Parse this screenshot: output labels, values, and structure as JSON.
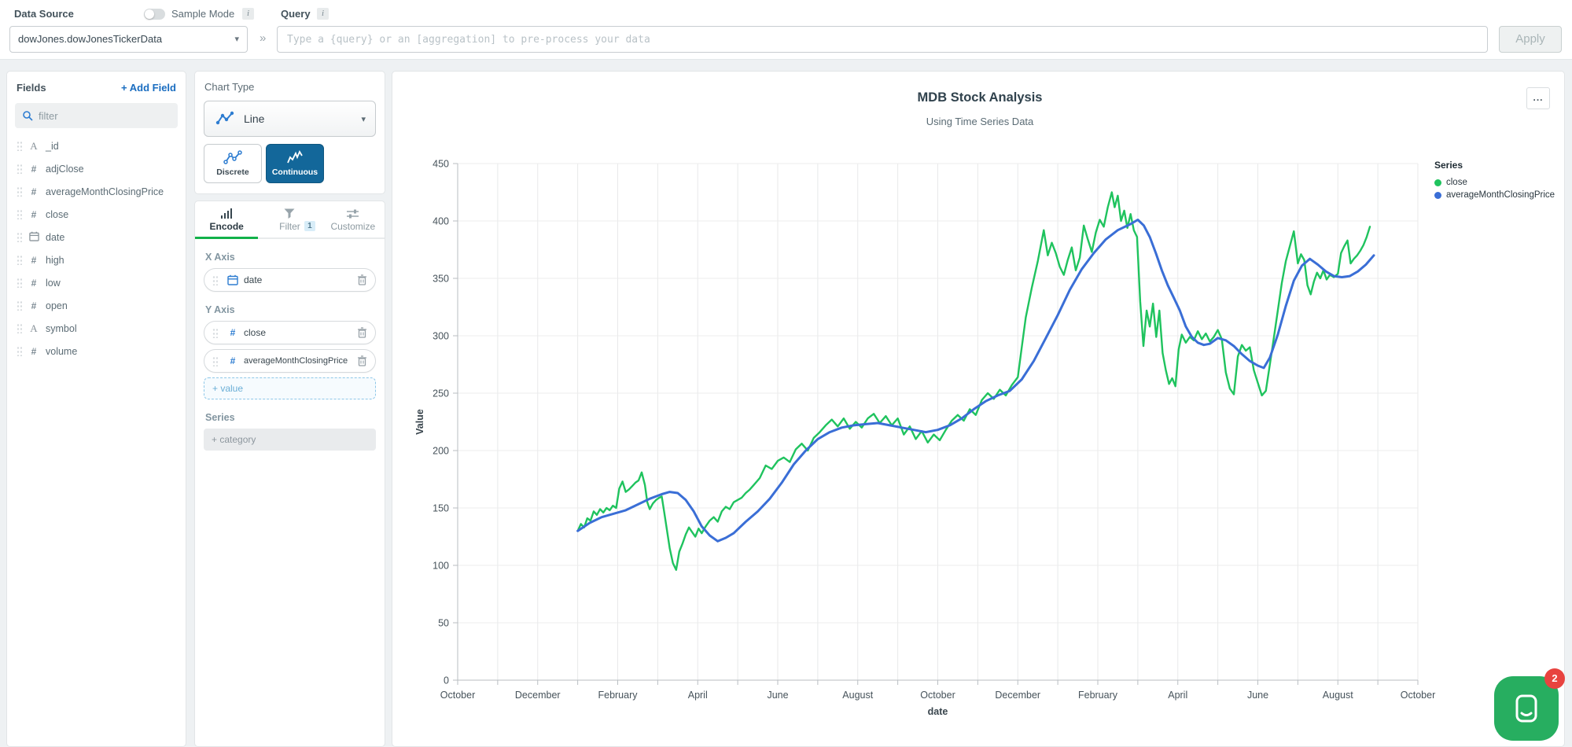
{
  "topbar": {
    "data_source_label": "Data Source",
    "sample_mode_label": "Sample Mode",
    "query_label": "Query",
    "info_glyph": "i",
    "data_source_value": "dowJones.dowJonesTickerData",
    "chevron": "»",
    "query_placeholder": "Type a {query} or an [aggregation] to pre-process your data",
    "apply_label": "Apply"
  },
  "fields_panel": {
    "title": "Fields",
    "add_field_label": "+ Add Field",
    "filter_placeholder": "filter",
    "fields": [
      {
        "name": "_id",
        "type": "string"
      },
      {
        "name": "adjClose",
        "type": "number"
      },
      {
        "name": "averageMonthClosingPrice",
        "type": "number"
      },
      {
        "name": "close",
        "type": "number"
      },
      {
        "name": "date",
        "type": "date"
      },
      {
        "name": "high",
        "type": "number"
      },
      {
        "name": "low",
        "type": "number"
      },
      {
        "name": "open",
        "type": "number"
      },
      {
        "name": "symbol",
        "type": "string"
      },
      {
        "name": "volume",
        "type": "number"
      }
    ]
  },
  "chart_type_panel": {
    "title": "Chart Type",
    "selected_type": "Line",
    "subtypes": [
      {
        "label": "Discrete",
        "selected": false
      },
      {
        "label": "Continuous",
        "selected": true
      }
    ]
  },
  "encode_panel": {
    "tabs": [
      {
        "label": "Encode",
        "active": true
      },
      {
        "label": "Filter",
        "badge": "1"
      },
      {
        "label": "Customize"
      }
    ],
    "x_axis": {
      "label": "X Axis",
      "field": "date"
    },
    "y_axis": {
      "label": "Y Axis",
      "fields": [
        "close",
        "averageMonthClosingPrice"
      ],
      "add_label": "+ value"
    },
    "series": {
      "label": "Series",
      "add_label": "+ category"
    }
  },
  "chart": {
    "title": "MDB Stock Analysis",
    "subtitle": "Using Time Series Data",
    "menu_label": "...",
    "legend": {
      "title": "Series",
      "items": [
        {
          "label": "close",
          "color": "#1fc35e"
        },
        {
          "label": "averageMonthClosingPrice",
          "color": "#3a6ed6"
        }
      ]
    }
  },
  "chart_data": {
    "type": "line",
    "title": "MDB Stock Analysis",
    "subtitle": "Using Time Series Data",
    "xlabel": "date",
    "ylabel": "Value",
    "ylim": [
      0,
      450
    ],
    "ytick_step": 50,
    "grid": true,
    "legend_position": "right",
    "x_is_months_from_first_tick": true,
    "months_span": 24,
    "x_tick_labels": [
      "October",
      "December",
      "February",
      "April",
      "June",
      "August",
      "October",
      "December",
      "February",
      "April",
      "June",
      "August",
      "October"
    ],
    "series": [
      {
        "name": "close",
        "color": "#1fc35e",
        "width": 2.4,
        "points": [
          [
            3.0,
            130
          ],
          [
            3.08,
            136
          ],
          [
            3.16,
            133
          ],
          [
            3.24,
            141
          ],
          [
            3.32,
            139
          ],
          [
            3.4,
            147
          ],
          [
            3.48,
            144
          ],
          [
            3.56,
            149
          ],
          [
            3.64,
            146
          ],
          [
            3.72,
            150
          ],
          [
            3.8,
            148
          ],
          [
            3.88,
            152
          ],
          [
            3.96,
            150
          ],
          [
            4.04,
            167
          ],
          [
            4.12,
            173
          ],
          [
            4.2,
            164
          ],
          [
            4.28,
            166
          ],
          [
            4.36,
            169
          ],
          [
            4.44,
            172
          ],
          [
            4.52,
            174
          ],
          [
            4.6,
            181
          ],
          [
            4.68,
            170
          ],
          [
            4.74,
            155
          ],
          [
            4.8,
            149
          ],
          [
            4.88,
            154
          ],
          [
            4.96,
            157
          ],
          [
            5.04,
            159
          ],
          [
            5.1,
            160
          ],
          [
            5.16,
            147
          ],
          [
            5.22,
            133
          ],
          [
            5.3,
            115
          ],
          [
            5.38,
            102
          ],
          [
            5.46,
            96
          ],
          [
            5.54,
            112
          ],
          [
            5.62,
            119
          ],
          [
            5.7,
            127
          ],
          [
            5.78,
            133
          ],
          [
            5.86,
            129
          ],
          [
            5.94,
            125
          ],
          [
            6.02,
            132
          ],
          [
            6.1,
            128
          ],
          [
            6.2,
            134
          ],
          [
            6.3,
            139
          ],
          [
            6.4,
            142
          ],
          [
            6.5,
            138
          ],
          [
            6.6,
            147
          ],
          [
            6.7,
            151
          ],
          [
            6.8,
            149
          ],
          [
            6.9,
            155
          ],
          [
            7.0,
            157
          ],
          [
            7.1,
            159
          ],
          [
            7.2,
            163
          ],
          [
            7.3,
            166
          ],
          [
            7.4,
            170
          ],
          [
            7.55,
            176
          ],
          [
            7.7,
            187
          ],
          [
            7.85,
            184
          ],
          [
            8.0,
            191
          ],
          [
            8.15,
            194
          ],
          [
            8.3,
            190
          ],
          [
            8.45,
            201
          ],
          [
            8.6,
            206
          ],
          [
            8.75,
            200
          ],
          [
            8.9,
            211
          ],
          [
            9.05,
            216
          ],
          [
            9.2,
            222
          ],
          [
            9.35,
            227
          ],
          [
            9.5,
            221
          ],
          [
            9.65,
            228
          ],
          [
            9.8,
            219
          ],
          [
            9.95,
            225
          ],
          [
            10.1,
            220
          ],
          [
            10.25,
            228
          ],
          [
            10.4,
            232
          ],
          [
            10.55,
            224
          ],
          [
            10.7,
            230
          ],
          [
            10.85,
            222
          ],
          [
            11.0,
            228
          ],
          [
            11.15,
            214
          ],
          [
            11.3,
            221
          ],
          [
            11.45,
            210
          ],
          [
            11.6,
            217
          ],
          [
            11.75,
            207
          ],
          [
            11.9,
            214
          ],
          [
            12.05,
            209
          ],
          [
            12.2,
            218
          ],
          [
            12.35,
            226
          ],
          [
            12.5,
            231
          ],
          [
            12.65,
            226
          ],
          [
            12.8,
            236
          ],
          [
            12.95,
            231
          ],
          [
            13.1,
            244
          ],
          [
            13.25,
            250
          ],
          [
            13.4,
            245
          ],
          [
            13.55,
            253
          ],
          [
            13.7,
            248
          ],
          [
            13.85,
            257
          ],
          [
            14.0,
            264
          ],
          [
            14.1,
            290
          ],
          [
            14.2,
            316
          ],
          [
            14.35,
            342
          ],
          [
            14.5,
            365
          ],
          [
            14.65,
            392
          ],
          [
            14.75,
            370
          ],
          [
            14.85,
            381
          ],
          [
            14.95,
            372
          ],
          [
            15.05,
            360
          ],
          [
            15.15,
            353
          ],
          [
            15.25,
            366
          ],
          [
            15.35,
            377
          ],
          [
            15.45,
            357
          ],
          [
            15.55,
            368
          ],
          [
            15.65,
            396
          ],
          [
            15.75,
            384
          ],
          [
            15.85,
            373
          ],
          [
            15.95,
            390
          ],
          [
            16.05,
            401
          ],
          [
            16.15,
            395
          ],
          [
            16.25,
            412
          ],
          [
            16.35,
            425
          ],
          [
            16.42,
            412
          ],
          [
            16.5,
            422
          ],
          [
            16.58,
            400
          ],
          [
            16.66,
            409
          ],
          [
            16.74,
            394
          ],
          [
            16.82,
            406
          ],
          [
            16.9,
            392
          ],
          [
            16.98,
            386
          ],
          [
            17.06,
            330
          ],
          [
            17.14,
            291
          ],
          [
            17.22,
            322
          ],
          [
            17.3,
            308
          ],
          [
            17.38,
            328
          ],
          [
            17.46,
            299
          ],
          [
            17.54,
            322
          ],
          [
            17.62,
            285
          ],
          [
            17.7,
            270
          ],
          [
            17.78,
            258
          ],
          [
            17.86,
            263
          ],
          [
            17.94,
            256
          ],
          [
            18.02,
            288
          ],
          [
            18.1,
            301
          ],
          [
            18.2,
            294
          ],
          [
            18.3,
            299
          ],
          [
            18.4,
            296
          ],
          [
            18.5,
            304
          ],
          [
            18.6,
            297
          ],
          [
            18.7,
            302
          ],
          [
            18.8,
            295
          ],
          [
            18.9,
            299
          ],
          [
            19.0,
            305
          ],
          [
            19.1,
            297
          ],
          [
            19.2,
            268
          ],
          [
            19.3,
            254
          ],
          [
            19.4,
            249
          ],
          [
            19.5,
            282
          ],
          [
            19.6,
            292
          ],
          [
            19.7,
            287
          ],
          [
            19.8,
            290
          ],
          [
            19.9,
            270
          ],
          [
            20.0,
            259
          ],
          [
            20.1,
            248
          ],
          [
            20.2,
            252
          ],
          [
            20.3,
            275
          ],
          [
            20.4,
            298
          ],
          [
            20.5,
            322
          ],
          [
            20.6,
            346
          ],
          [
            20.7,
            365
          ],
          [
            20.8,
            378
          ],
          [
            20.9,
            391
          ],
          [
            21.0,
            363
          ],
          [
            21.08,
            371
          ],
          [
            21.16,
            366
          ],
          [
            21.24,
            344
          ],
          [
            21.32,
            336
          ],
          [
            21.4,
            347
          ],
          [
            21.48,
            355
          ],
          [
            21.56,
            350
          ],
          [
            21.64,
            357
          ],
          [
            21.72,
            349
          ],
          [
            21.8,
            353
          ],
          [
            21.9,
            351
          ],
          [
            22.0,
            354
          ],
          [
            22.08,
            372
          ],
          [
            22.16,
            378
          ],
          [
            22.24,
            383
          ],
          [
            22.32,
            363
          ],
          [
            22.4,
            367
          ],
          [
            22.48,
            370
          ],
          [
            22.56,
            374
          ],
          [
            22.64,
            379
          ],
          [
            22.72,
            386
          ],
          [
            22.8,
            395
          ]
        ]
      },
      {
        "name": "averageMonthClosingPrice",
        "color": "#3a6ed6",
        "width": 3,
        "points": [
          [
            3.0,
            130
          ],
          [
            3.3,
            137
          ],
          [
            3.6,
            142
          ],
          [
            3.9,
            145
          ],
          [
            4.2,
            148
          ],
          [
            4.5,
            153
          ],
          [
            4.8,
            158
          ],
          [
            5.1,
            162
          ],
          [
            5.3,
            164
          ],
          [
            5.5,
            163
          ],
          [
            5.7,
            157
          ],
          [
            5.9,
            147
          ],
          [
            6.1,
            134
          ],
          [
            6.3,
            126
          ],
          [
            6.5,
            121
          ],
          [
            6.7,
            124
          ],
          [
            6.9,
            128
          ],
          [
            7.2,
            138
          ],
          [
            7.5,
            147
          ],
          [
            7.8,
            158
          ],
          [
            8.1,
            172
          ],
          [
            8.4,
            188
          ],
          [
            8.7,
            200
          ],
          [
            9.0,
            210
          ],
          [
            9.3,
            216
          ],
          [
            9.6,
            220
          ],
          [
            9.9,
            222
          ],
          [
            10.2,
            223
          ],
          [
            10.5,
            224
          ],
          [
            10.8,
            222
          ],
          [
            11.1,
            220
          ],
          [
            11.4,
            218
          ],
          [
            11.7,
            216
          ],
          [
            12.0,
            218
          ],
          [
            12.3,
            222
          ],
          [
            12.6,
            228
          ],
          [
            12.9,
            236
          ],
          [
            13.2,
            243
          ],
          [
            13.5,
            248
          ],
          [
            13.8,
            252
          ],
          [
            14.1,
            262
          ],
          [
            14.4,
            278
          ],
          [
            14.7,
            298
          ],
          [
            15.0,
            318
          ],
          [
            15.3,
            340
          ],
          [
            15.6,
            358
          ],
          [
            15.9,
            372
          ],
          [
            16.2,
            384
          ],
          [
            16.5,
            392
          ],
          [
            16.8,
            397
          ],
          [
            17.0,
            401
          ],
          [
            17.15,
            396
          ],
          [
            17.3,
            386
          ],
          [
            17.45,
            372
          ],
          [
            17.6,
            357
          ],
          [
            17.75,
            344
          ],
          [
            17.9,
            333
          ],
          [
            18.05,
            322
          ],
          [
            18.2,
            308
          ],
          [
            18.35,
            299
          ],
          [
            18.5,
            294
          ],
          [
            18.65,
            292
          ],
          [
            18.8,
            293
          ],
          [
            19.0,
            298
          ],
          [
            19.2,
            296
          ],
          [
            19.4,
            291
          ],
          [
            19.6,
            284
          ],
          [
            19.8,
            278
          ],
          [
            20.0,
            274
          ],
          [
            20.15,
            272
          ],
          [
            20.3,
            281
          ],
          [
            20.5,
            301
          ],
          [
            20.7,
            326
          ],
          [
            20.9,
            348
          ],
          [
            21.1,
            361
          ],
          [
            21.3,
            367
          ],
          [
            21.5,
            362
          ],
          [
            21.7,
            356
          ],
          [
            21.9,
            352
          ],
          [
            22.1,
            351
          ],
          [
            22.3,
            352
          ],
          [
            22.5,
            356
          ],
          [
            22.7,
            362
          ],
          [
            22.9,
            370
          ]
        ]
      }
    ]
  },
  "intercom": {
    "badge": "2"
  },
  "colors": {
    "accent_blue": "#1a6dc0",
    "icon_blue": "#2e7dd1",
    "tab_green": "#12b14a",
    "continuous_bg": "#13679a"
  }
}
